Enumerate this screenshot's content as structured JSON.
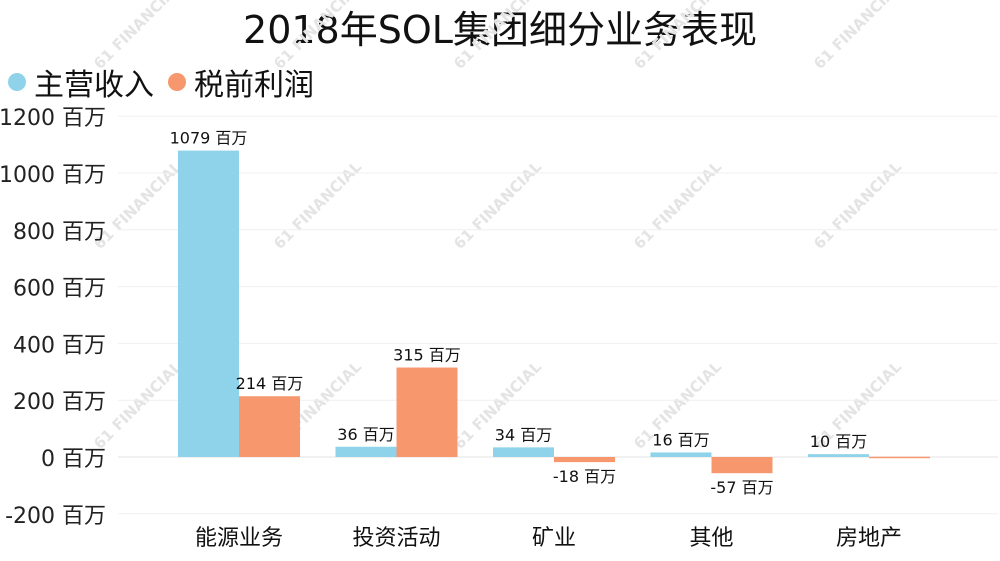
{
  "chart_data": {
    "type": "bar",
    "title": "2018年SOL集团细分业务表现",
    "categories": [
      "能源业务",
      "投资活动",
      "矿业",
      "其他",
      "房地产"
    ],
    "series": [
      {
        "name": "主营收入",
        "color": "#8fd3ea",
        "values": [
          1079,
          36,
          34,
          16,
          10
        ]
      },
      {
        "name": "税前利润",
        "color": "#f7976d",
        "values": [
          214,
          315,
          -18,
          -57,
          1
        ]
      }
    ],
    "data_labels": [
      [
        "1079 百万",
        "36 百万",
        "34 百万",
        "16 百万",
        "10 百万"
      ],
      [
        "214 百万",
        "315 百万",
        "-18 百万",
        "-57 百万",
        ""
      ]
    ],
    "y_ticks": [
      1200,
      1000,
      800,
      600,
      400,
      200,
      0,
      -200
    ],
    "y_tick_labels": [
      "1200 百万",
      "1000 百万",
      "800 百万",
      "600 百万",
      "400 百万",
      "200 百万",
      "0 百万",
      "-200 百万"
    ],
    "ylim": [
      -200,
      1200
    ],
    "grid": true,
    "legend_position": "top-left",
    "watermark": "61 FINANCIAL"
  }
}
